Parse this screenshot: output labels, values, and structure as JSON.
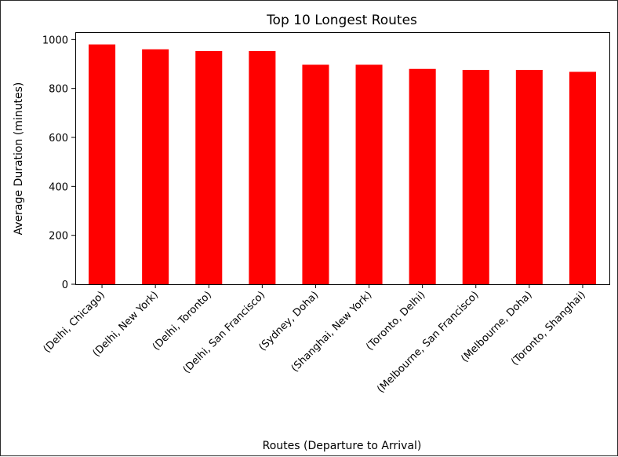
{
  "chart_data": {
    "type": "bar",
    "title": "Top 10 Longest Routes",
    "xlabel": "Routes (Departure to Arrival)",
    "ylabel": "Average Duration (minutes)",
    "categories": [
      "(Delhi, Chicago)",
      "(Delhi, New York)",
      "(Delhi, Toronto)",
      "(Delhi, San Francisco)",
      "(Sydney, Doha)",
      "(Shanghai, New York)",
      "(Toronto, Delhi)",
      "(Melbourne, San Francisco)",
      "(Melbourne, Doha)",
      "(Toronto, Shanghai)"
    ],
    "values": [
      980,
      960,
      953,
      953,
      897,
      897,
      880,
      876,
      876,
      868
    ],
    "ylim": [
      0,
      1030
    ],
    "yticks": [
      0,
      200,
      400,
      600,
      800,
      1000
    ],
    "bar_color": "#ff0000",
    "grid": false,
    "legend": "none"
  }
}
